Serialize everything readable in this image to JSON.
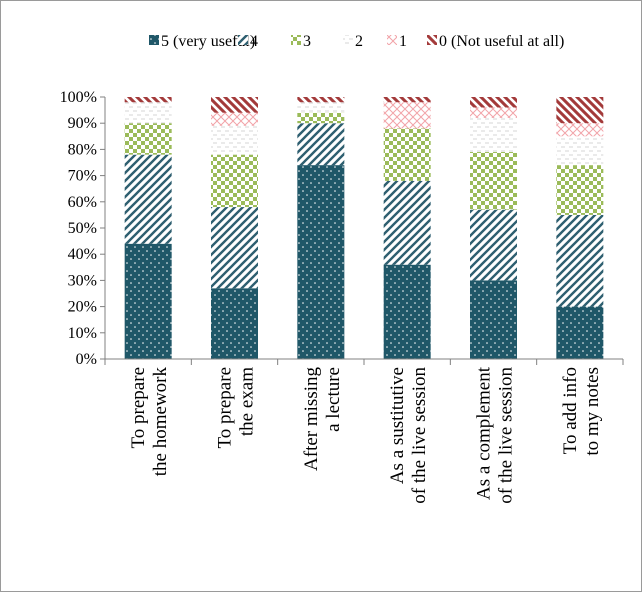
{
  "colors": {
    "s5": "#1f5768",
    "s4": "#2e5f70",
    "s3": "#9bbb59",
    "s2": "#d6d6d6",
    "s1": "#f2a3a8",
    "s0": "#a33a3a",
    "axis": "#808080"
  },
  "chart_data": {
    "type": "bar",
    "stacked": true,
    "title": "",
    "xlabel": "",
    "ylabel": "",
    "ylim": [
      0,
      100
    ],
    "y_ticks": [
      "0%",
      "10%",
      "20%",
      "30%",
      "40%",
      "50%",
      "60%",
      "70%",
      "80%",
      "90%",
      "100%"
    ],
    "legend_position": "top",
    "grid": false,
    "categories": [
      [
        "To prepare",
        "the homework"
      ],
      [
        "To prepare",
        "the exam"
      ],
      [
        "After missing",
        "a lecture"
      ],
      [
        "As a sustitutive",
        "of the live session"
      ],
      [
        "As a complement",
        "of the live session"
      ],
      [
        "To add info",
        "to my notes"
      ]
    ],
    "series": [
      {
        "name": "5 (very useful)",
        "key": "s5",
        "values": [
          44,
          27,
          74,
          36,
          30,
          20
        ]
      },
      {
        "name": "4",
        "key": "s4",
        "values": [
          34,
          31,
          16,
          32,
          27,
          35
        ]
      },
      {
        "name": "3",
        "key": "s3",
        "values": [
          12,
          20,
          4,
          20,
          22,
          19
        ]
      },
      {
        "name": "2",
        "key": "s2",
        "values": [
          8,
          11,
          4,
          0,
          13,
          11
        ]
      },
      {
        "name": "1",
        "key": "s1",
        "values": [
          0,
          5,
          0,
          10,
          4,
          5
        ]
      },
      {
        "name": "0 (Not useful at all)",
        "key": "s0",
        "values": [
          2,
          6,
          2,
          2,
          4,
          10
        ]
      }
    ]
  }
}
